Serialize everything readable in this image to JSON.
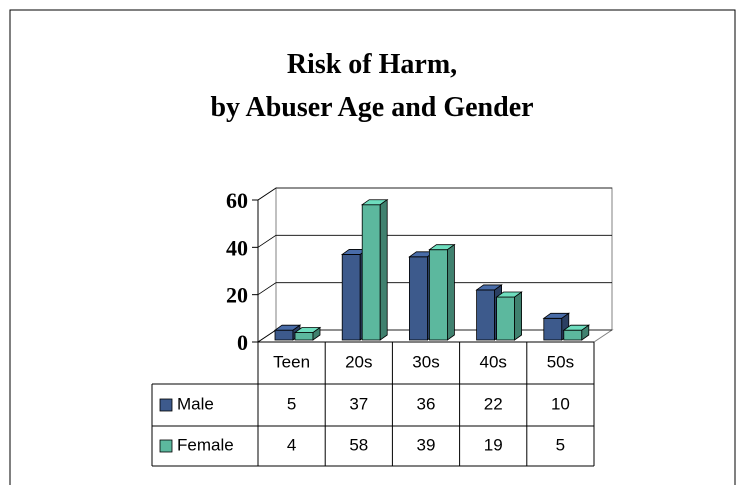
{
  "chart_data": {
    "type": "bar3d",
    "title": [
      "Risk of Harm,",
      "by Abuser Age and Gender"
    ],
    "categories": [
      "Teen",
      "20s",
      "30s",
      "40s",
      "50s"
    ],
    "series": [
      {
        "name": "Male",
        "color": "#3d5a8c",
        "values": [
          5,
          37,
          36,
          22,
          10
        ]
      },
      {
        "name": "Female",
        "color": "#5cb89e",
        "values": [
          4,
          58,
          39,
          19,
          5
        ]
      }
    ],
    "ylim": [
      0,
      60
    ],
    "yticks": [
      0,
      20,
      40,
      60
    ],
    "grid": true,
    "data_table": true
  }
}
